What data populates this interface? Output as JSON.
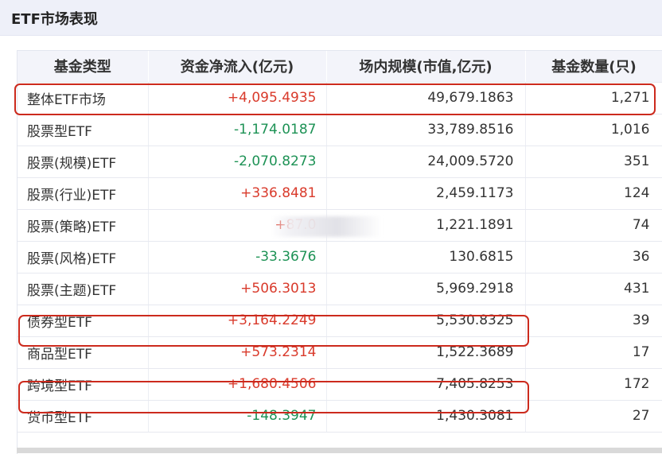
{
  "header": {
    "title": "ETF市场表现"
  },
  "table": {
    "columns": [
      "基金类型",
      "资金净流入(亿元)",
      "场内规模(市值,亿元)",
      "基金数量(只)"
    ],
    "rows": [
      {
        "name": "整体ETF市场",
        "net_inflow": "+4,095.4935",
        "scale": "49,679.1863",
        "count": "1,271",
        "sign": "pos"
      },
      {
        "name": "股票型ETF",
        "net_inflow": "-1,174.0187",
        "scale": "33,789.8516",
        "count": "1,016",
        "sign": "neg"
      },
      {
        "name": "股票(规模)ETF",
        "net_inflow": "-2,070.8273",
        "scale": "24,009.5720",
        "count": "351",
        "sign": "neg"
      },
      {
        "name": "股票(行业)ETF",
        "net_inflow": "+336.8481",
        "scale": "2,459.1173",
        "count": "124",
        "sign": "pos"
      },
      {
        "name": "股票(策略)ETF",
        "net_inflow": "+87.0",
        "scale": "1,221.1891",
        "count": "74",
        "sign": "pos"
      },
      {
        "name": "股票(风格)ETF",
        "net_inflow": "-33.3676",
        "scale": "130.6815",
        "count": "36",
        "sign": "neg"
      },
      {
        "name": "股票(主题)ETF",
        "net_inflow": "+506.3013",
        "scale": "5,969.2918",
        "count": "431",
        "sign": "pos"
      },
      {
        "name": "债券型ETF",
        "net_inflow": "+3,164.2249",
        "scale": "5,530.8325",
        "count": "39",
        "sign": "pos"
      },
      {
        "name": "商品型ETF",
        "net_inflow": "+573.2314",
        "scale": "1,522.3689",
        "count": "17",
        "sign": "pos"
      },
      {
        "name": "跨境型ETF",
        "net_inflow": "+1,680.4506",
        "scale": "7,405.8253",
        "count": "172",
        "sign": "pos"
      },
      {
        "name": "货币型ETF",
        "net_inflow": "-148.3947",
        "scale": "1,430.3081",
        "count": "27",
        "sign": "neg"
      }
    ]
  },
  "colors": {
    "positive": "#d93a2b",
    "negative": "#1d9255",
    "highlight": "#cc2a1d",
    "header_bg": "#f3f4fa"
  }
}
